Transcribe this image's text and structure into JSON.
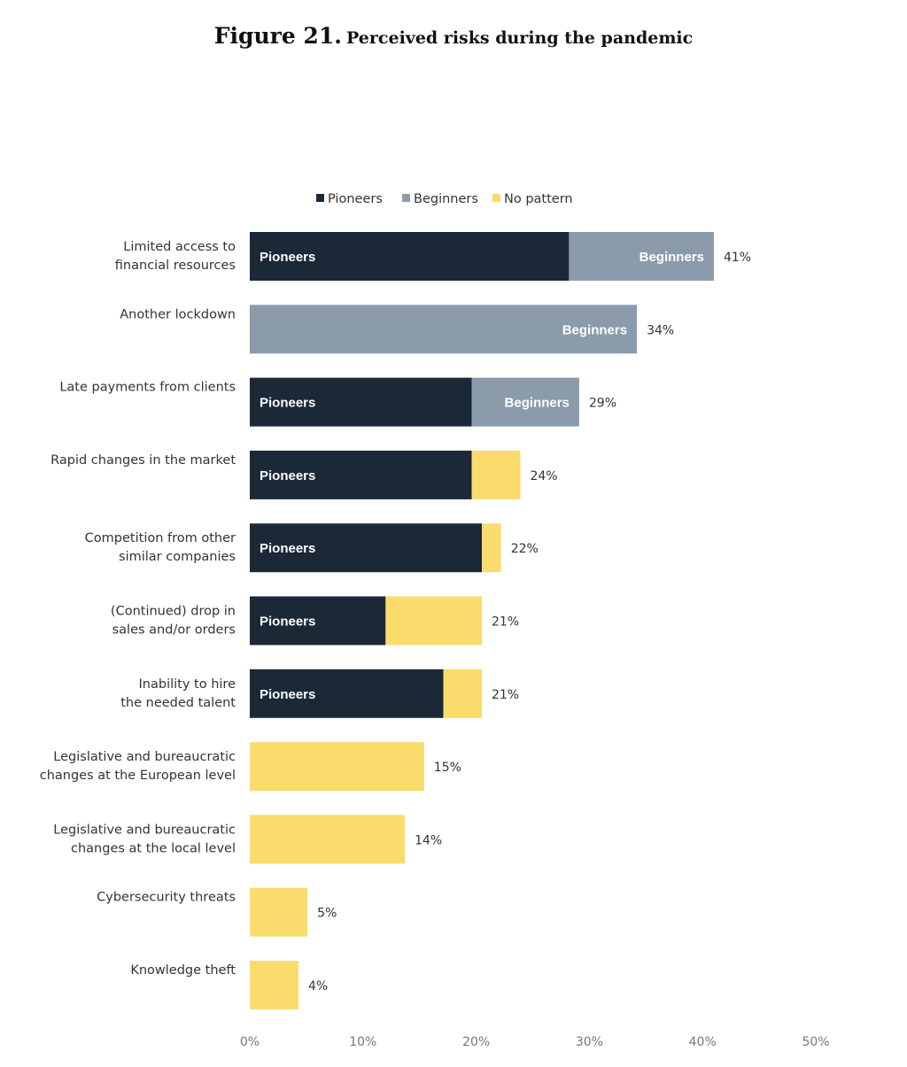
{
  "title": {
    "figure": "Figure 21.",
    "subtitle": "Perceived risks during the pandemic"
  },
  "colors": {
    "Pioneers": "#1b2836",
    "Beginners": "#8b9bab",
    "No pattern": "#f9dc6c"
  },
  "chart_data": {
    "type": "bar",
    "orientation": "horizontal",
    "stacked": true,
    "title": "Perceived risks during the pandemic",
    "xlim": [
      0,
      50
    ],
    "xticks": [
      "0%",
      "10%",
      "20%",
      "30%",
      "40%",
      "50%"
    ],
    "legend": [
      "Pioneers",
      "Beginners",
      "No pattern"
    ],
    "legend_position": "top",
    "categories": [
      [
        "Limited access to",
        "financial resources"
      ],
      [
        "Another lockdown"
      ],
      [
        "Late payments from clients"
      ],
      [
        "Rapid changes in the market"
      ],
      [
        "Competition from other",
        "similar companies"
      ],
      [
        "(Continued) drop in",
        "sales and/or orders"
      ],
      [
        "Inability to hire",
        "the needed talent"
      ],
      [
        "Legislative and bureaucratic",
        "changes at the European level"
      ],
      [
        "Legislative and bureaucratic",
        "changes at the local level"
      ],
      [
        "Cybersecurity threats"
      ],
      [
        "Knowledge theft"
      ]
    ],
    "totals": [
      "41%",
      "34%",
      "29%",
      "24%",
      "22%",
      "21%",
      "21%",
      "15%",
      "14%",
      "5%",
      "4%"
    ],
    "rows": [
      {
        "segments": [
          {
            "series": "Pioneers",
            "value": 28.2,
            "label": "Pioneers"
          },
          {
            "series": "Beginners",
            "value": 12.8,
            "label": "Beginners"
          }
        ]
      },
      {
        "segments": [
          {
            "series": "Beginners",
            "value": 34.2,
            "label": "Beginners"
          }
        ]
      },
      {
        "segments": [
          {
            "series": "Pioneers",
            "value": 19.6,
            "label": "Pioneers"
          },
          {
            "series": "Beginners",
            "value": 9.5,
            "label": "Beginners"
          }
        ]
      },
      {
        "segments": [
          {
            "series": "Pioneers",
            "value": 19.6,
            "label": "Pioneers"
          },
          {
            "series": "No pattern",
            "value": 4.3,
            "label": ""
          }
        ]
      },
      {
        "segments": [
          {
            "series": "Pioneers",
            "value": 20.5,
            "label": "Pioneers"
          },
          {
            "series": "No pattern",
            "value": 1.7,
            "label": ""
          }
        ]
      },
      {
        "segments": [
          {
            "series": "Pioneers",
            "value": 12.0,
            "label": "Pioneers"
          },
          {
            "series": "No pattern",
            "value": 8.5,
            "label": ""
          }
        ]
      },
      {
        "segments": [
          {
            "series": "Pioneers",
            "value": 17.1,
            "label": "Pioneers"
          },
          {
            "series": "No pattern",
            "value": 3.4,
            "label": ""
          }
        ]
      },
      {
        "segments": [
          {
            "series": "No pattern",
            "value": 15.4,
            "label": ""
          }
        ]
      },
      {
        "segments": [
          {
            "series": "No pattern",
            "value": 13.7,
            "label": ""
          }
        ]
      },
      {
        "segments": [
          {
            "series": "No pattern",
            "value": 5.1,
            "label": ""
          }
        ]
      },
      {
        "segments": [
          {
            "series": "No pattern",
            "value": 4.3,
            "label": ""
          }
        ]
      }
    ]
  }
}
